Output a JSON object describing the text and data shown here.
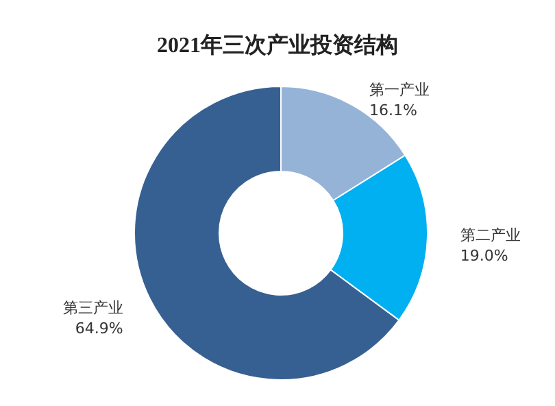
{
  "chart_data": {
    "type": "donut",
    "title": "2021年三次产业投资结构",
    "categories": [
      "第一产业",
      "第二产业",
      "第三产业"
    ],
    "values": [
      16.1,
      19.0,
      64.9
    ],
    "colors": [
      "#95b3d7",
      "#00b0f0",
      "#376092"
    ],
    "value_labels": [
      "16.1%",
      "19.0%",
      "64.9%"
    ]
  }
}
